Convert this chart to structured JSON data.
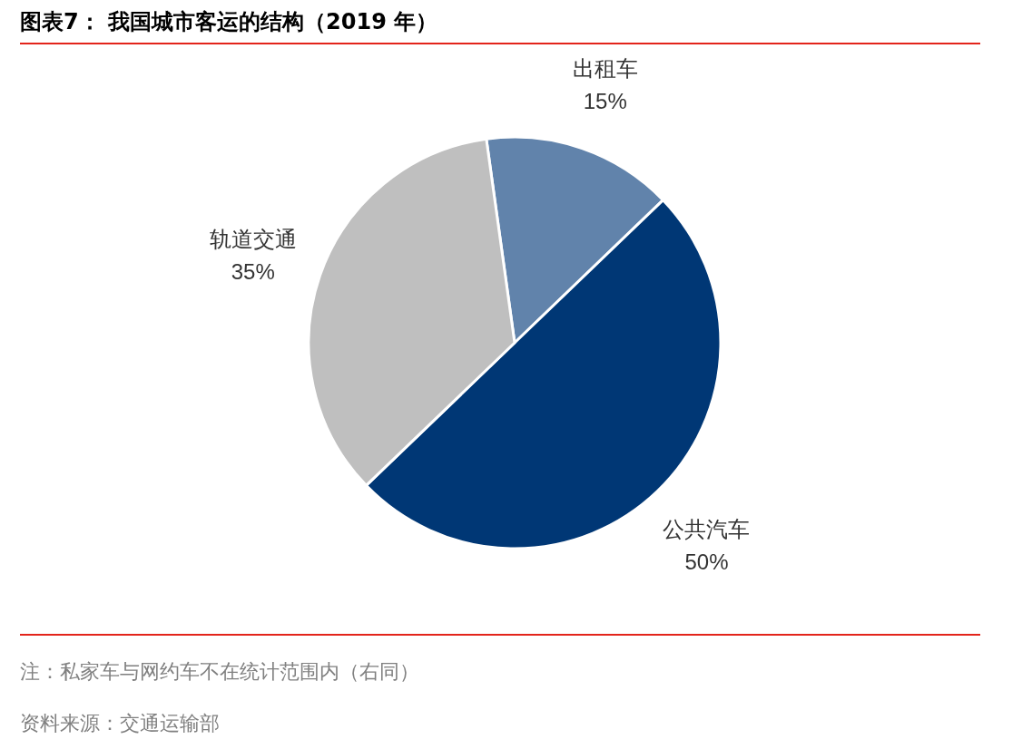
{
  "chart_data": {
    "type": "pie",
    "title": "图表7：  我国城市客运的结构（2019 年）",
    "categories": [
      "出租车",
      "公共汽车",
      "轨道交通"
    ],
    "values": [
      15,
      50,
      35
    ],
    "colors": [
      "#6183ab",
      "#003775",
      "#bfbfbf"
    ],
    "value_labels": [
      "15%",
      "50%",
      "35%"
    ],
    "annotations": [
      "注：私家车与网约车不在统计范围内（右同）",
      "资料来源：交通运输部"
    ]
  }
}
